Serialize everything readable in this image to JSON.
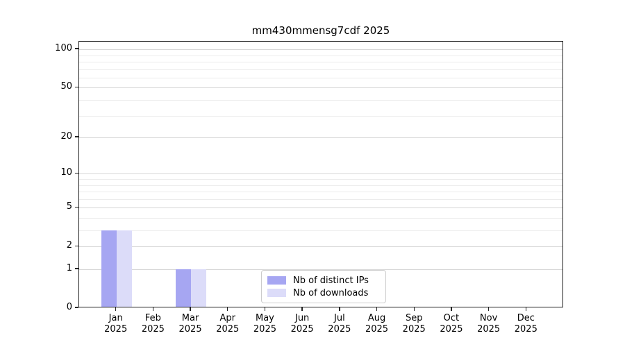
{
  "chart_data": {
    "type": "bar",
    "title": "mm430mmensg7cdf 2025",
    "categories": [
      "Jan",
      "Feb",
      "Mar",
      "Apr",
      "May",
      "Jun",
      "Jul",
      "Aug",
      "Sep",
      "Oct",
      "Nov",
      "Dec"
    ],
    "x_sublabel": "2025",
    "series": [
      {
        "name": "Nb of distinct IPs",
        "color": "#a6a6f2",
        "values": [
          3,
          0,
          1,
          0,
          0,
          0,
          0,
          0,
          0,
          0,
          0,
          0
        ]
      },
      {
        "name": "Nb of downloads",
        "color": "#dcdcf9",
        "values": [
          3,
          0,
          1,
          0,
          0,
          0,
          0,
          0,
          0,
          0,
          0,
          0
        ]
      }
    ],
    "yaxis": {
      "scale": "log1p",
      "ticks": [
        0,
        1,
        2,
        5,
        10,
        20,
        50,
        100
      ],
      "minor_gridlines": [
        3,
        4,
        6,
        7,
        8,
        9,
        30,
        40,
        60,
        70,
        80,
        90
      ],
      "max": 115
    },
    "xlabel": "",
    "ylabel": "",
    "grid": true,
    "legend_position": "inside-bottom-center"
  },
  "colors": {
    "background": "#ffffff",
    "grid_major": "#d6d6d6",
    "grid_minor": "#ececec",
    "spine": "#1a1a1a",
    "text": "#000000",
    "legend_border": "#cccccc"
  }
}
